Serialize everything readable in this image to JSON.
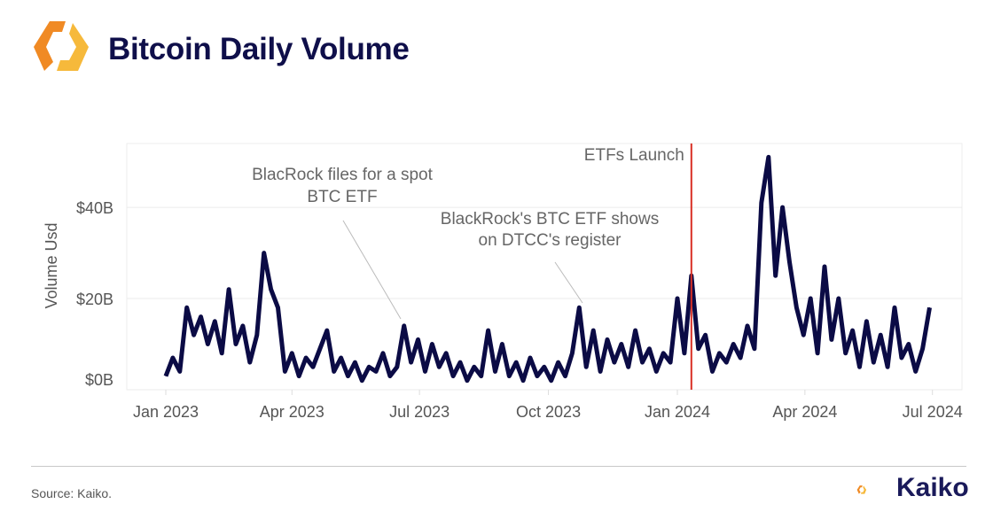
{
  "header": {
    "title": "Bitcoin Daily Volume",
    "logo": "kaiko-hexagon-logo"
  },
  "footer": {
    "source": "Source: Kaiko.",
    "brand": "Kaiko"
  },
  "colors": {
    "line": "#0b0b45",
    "event_line": "#d93025",
    "title": "#0f0f4a",
    "logo_orange": "#f08a24",
    "logo_yellow": "#f6b93b",
    "annotation": "#666666"
  },
  "chart_data": {
    "type": "line",
    "title": "",
    "xlabel": "",
    "ylabel": "Volume Usd",
    "ylim": [
      0,
      54
    ],
    "xlim": [
      "2022-12-20",
      "2024-07-20"
    ],
    "grid": true,
    "y_ticks": [
      {
        "value": 0,
        "label": "$0B"
      },
      {
        "value": 20,
        "label": "$20B"
      },
      {
        "value": 40,
        "label": "$40B"
      }
    ],
    "x_ticks": [
      {
        "date": "2023-01-01",
        "label": "Jan 2023"
      },
      {
        "date": "2023-04-01",
        "label": "Apr 2023"
      },
      {
        "date": "2023-07-01",
        "label": "Jul 2023"
      },
      {
        "date": "2023-10-01",
        "label": "Oct 2023"
      },
      {
        "date": "2024-01-01",
        "label": "Jan 2024"
      },
      {
        "date": "2024-04-01",
        "label": "Apr 2024"
      },
      {
        "date": "2024-07-01",
        "label": "Jul 2024"
      }
    ],
    "vertical_line": {
      "date": "2024-01-11",
      "label": "ETFs Launch"
    },
    "annotations": [
      {
        "lines": [
          "BlacRock files for a spot",
          "BTC ETF"
        ],
        "date": "2023-06-16",
        "value": 14
      },
      {
        "lines": [
          "BlackRock's BTC ETF shows",
          "on DTCC's register"
        ],
        "date": "2023-10-23",
        "value": 18
      }
    ],
    "unit": "billion USD",
    "x": [
      "2023-01-01",
      "2023-01-06",
      "2023-01-11",
      "2023-01-16",
      "2023-01-21",
      "2023-01-26",
      "2023-01-31",
      "2023-02-05",
      "2023-02-10",
      "2023-02-15",
      "2023-02-20",
      "2023-02-25",
      "2023-03-02",
      "2023-03-07",
      "2023-03-12",
      "2023-03-17",
      "2023-03-22",
      "2023-03-27",
      "2023-04-01",
      "2023-04-06",
      "2023-04-11",
      "2023-04-16",
      "2023-04-21",
      "2023-04-26",
      "2023-05-01",
      "2023-05-06",
      "2023-05-11",
      "2023-05-16",
      "2023-05-21",
      "2023-05-26",
      "2023-05-31",
      "2023-06-05",
      "2023-06-10",
      "2023-06-15",
      "2023-06-20",
      "2023-06-25",
      "2023-06-30",
      "2023-07-05",
      "2023-07-10",
      "2023-07-15",
      "2023-07-20",
      "2023-07-25",
      "2023-07-30",
      "2023-08-04",
      "2023-08-09",
      "2023-08-14",
      "2023-08-19",
      "2023-08-24",
      "2023-08-29",
      "2023-09-03",
      "2023-09-08",
      "2023-09-13",
      "2023-09-18",
      "2023-09-23",
      "2023-09-28",
      "2023-10-03",
      "2023-10-08",
      "2023-10-13",
      "2023-10-18",
      "2023-10-23",
      "2023-10-28",
      "2023-11-02",
      "2023-11-07",
      "2023-11-12",
      "2023-11-17",
      "2023-11-22",
      "2023-11-27",
      "2023-12-02",
      "2023-12-07",
      "2023-12-12",
      "2023-12-17",
      "2023-12-22",
      "2023-12-27",
      "2024-01-01",
      "2024-01-06",
      "2024-01-11",
      "2024-01-16",
      "2024-01-21",
      "2024-01-26",
      "2024-01-31",
      "2024-02-05",
      "2024-02-10",
      "2024-02-15",
      "2024-02-20",
      "2024-02-25",
      "2024-03-01",
      "2024-03-06",
      "2024-03-11",
      "2024-03-16",
      "2024-03-21",
      "2024-03-26",
      "2024-03-31",
      "2024-04-05",
      "2024-04-10",
      "2024-04-15",
      "2024-04-20",
      "2024-04-25",
      "2024-04-30",
      "2024-05-05",
      "2024-05-10",
      "2024-05-15",
      "2024-05-20",
      "2024-05-25",
      "2024-05-30",
      "2024-06-04",
      "2024-06-09",
      "2024-06-14",
      "2024-06-19",
      "2024-06-24",
      "2024-06-29"
    ],
    "series": [
      {
        "values": [
          3,
          7,
          4,
          18,
          12,
          16,
          10,
          15,
          8,
          22,
          10,
          14,
          6,
          12,
          30,
          22,
          18,
          4,
          8,
          3,
          7,
          5,
          9,
          13,
          4,
          7,
          3,
          6,
          2,
          5,
          4,
          8,
          3,
          5,
          14,
          6,
          11,
          4,
          10,
          5,
          8,
          3,
          6,
          2,
          5,
          3,
          13,
          4,
          10,
          3,
          6,
          2,
          7,
          3,
          5,
          2,
          6,
          3,
          8,
          18,
          5,
          13,
          4,
          11,
          6,
          10,
          5,
          13,
          6,
          9,
          4,
          8,
          6,
          20,
          8,
          25,
          9,
          12,
          4,
          8,
          6,
          10,
          7,
          14,
          9,
          41,
          51,
          25,
          40,
          28,
          18,
          12,
          20,
          8,
          27,
          11,
          20,
          8,
          13,
          5,
          15,
          6,
          12,
          5,
          18,
          7,
          10,
          4,
          9,
          18
        ]
      }
    ]
  }
}
